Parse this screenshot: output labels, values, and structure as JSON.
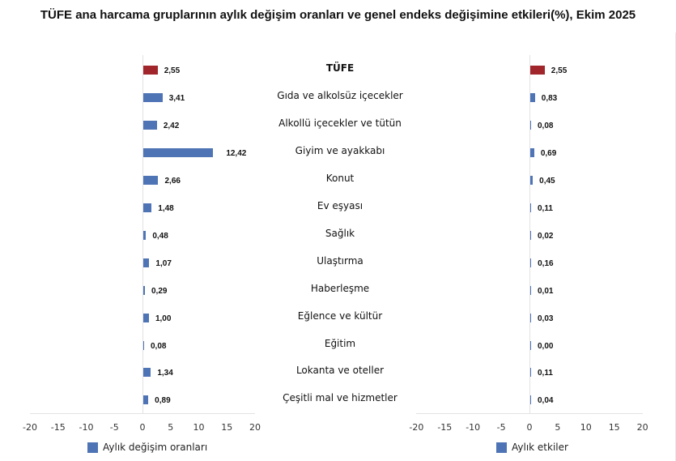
{
  "title": "TÜFE ana harcama gruplarının aylık değişim oranları ve genel endeks değişimine etkileri(%), Ekim 2025",
  "colors": {
    "highlight": "#a0262b",
    "series": "#4f74b5",
    "axis": "#e2e2e2"
  },
  "categories": [
    "TÜFE",
    "Gıda ve alkolsüz içecekler",
    "Alkollü içecekler ve tütün",
    "Giyim ve ayakkabı",
    "Konut",
    "Ev eşyası",
    "Sağlık",
    "Ulaştırma",
    "Haberleşme",
    "Eğlence ve kültür",
    "Eğitim",
    "Lokanta ve oteller",
    "Çeşitli mal ve hizmetler"
  ],
  "left": {
    "legend": "Aylık değişim oranları",
    "ticks": [
      "-20",
      "-15",
      "-10",
      "-5",
      "0",
      "5",
      "10",
      "15",
      "20"
    ],
    "labels": [
      "2,55",
      "3,41",
      "2,42",
      "12,42",
      "2,66",
      "1,48",
      "0,48",
      "1,07",
      "0,29",
      "1,00",
      "0,08",
      "1,34",
      "0,89"
    ]
  },
  "right": {
    "legend": "Aylık etkiler",
    "ticks": [
      "-20",
      "-15",
      "-10",
      "-5",
      "0",
      "5",
      "10",
      "15",
      "20"
    ],
    "labels": [
      "2,55",
      "0,83",
      "0,08",
      "0,69",
      "0,45",
      "0,11",
      "0,02",
      "0,16",
      "0,01",
      "0,03",
      "0,00",
      "0,11",
      "0,04"
    ]
  },
  "chart_data": [
    {
      "type": "bar",
      "orientation": "horizontal",
      "title": "TÜFE ana harcama gruplarının aylık değişim oranları ve genel endeks değişimine etkileri(%), Ekim 2025",
      "categories": [
        "TÜFE",
        "Gıda ve alkolsüz içecekler",
        "Alkollü içecekler ve tütün",
        "Giyim ve ayakkabı",
        "Konut",
        "Ev eşyası",
        "Sağlık",
        "Ulaştırma",
        "Haberleşme",
        "Eğlence ve kültür",
        "Eğitim",
        "Lokanta ve oteller",
        "Çeşitli mal ve hizmetler"
      ],
      "series": [
        {
          "name": "Aylık değişim oranları",
          "values": [
            2.55,
            3.41,
            2.42,
            12.42,
            2.66,
            1.48,
            0.48,
            1.07,
            0.29,
            1.0,
            0.08,
            1.34,
            0.89
          ]
        }
      ],
      "xlim": [
        -20,
        20
      ],
      "xticks": [
        -20,
        -15,
        -10,
        -5,
        0,
        5,
        10,
        15,
        20
      ],
      "grid": false,
      "legend_position": "bottom",
      "highlight_category": "TÜFE"
    },
    {
      "type": "bar",
      "orientation": "horizontal",
      "categories": [
        "TÜFE",
        "Gıda ve alkolsüz içecekler",
        "Alkollü içecekler ve tütün",
        "Giyim ve ayakkabı",
        "Konut",
        "Ev eşyası",
        "Sağlık",
        "Ulaştırma",
        "Haberleşme",
        "Eğlence ve kültür",
        "Eğitim",
        "Lokanta ve oteller",
        "Çeşitli mal ve hizmetler"
      ],
      "series": [
        {
          "name": "Aylık etkiler",
          "values": [
            2.55,
            0.83,
            0.08,
            0.69,
            0.45,
            0.11,
            0.02,
            0.16,
            0.01,
            0.03,
            0.0,
            0.11,
            0.04
          ]
        }
      ],
      "xlim": [
        -20,
        20
      ],
      "xticks": [
        -20,
        -15,
        -10,
        -5,
        0,
        5,
        10,
        15,
        20
      ],
      "grid": false,
      "legend_position": "bottom",
      "highlight_category": "TÜFE"
    }
  ]
}
